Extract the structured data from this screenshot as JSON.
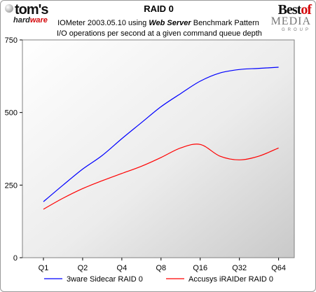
{
  "logos": {
    "left": {
      "main": "tom's",
      "sub_dark": "hard",
      "sub_red": "ware"
    },
    "right": {
      "best": "Best",
      "of": "of",
      "media": "MEDIA",
      "group": "GROUP"
    }
  },
  "header": {
    "title": "RAID 0",
    "subtitle_pre": "IOMeter 2003.05.10 using ",
    "subtitle_bold": "Web Server",
    "subtitle_post": " Benchmark Pattern",
    "subtitle2": "I/O operations per second at a given command queue depth"
  },
  "chart_data": {
    "type": "line",
    "title": "RAID 0",
    "categories": [
      "Q1",
      "Q2",
      "Q4",
      "Q8",
      "Q16",
      "Q32",
      "Q64"
    ],
    "x": [
      0,
      0.5,
      1,
      1.5,
      2,
      2.5,
      3,
      3.5,
      4,
      4.5,
      5,
      5.5,
      6
    ],
    "ylim": [
      0,
      750
    ],
    "yticks": [
      0,
      250,
      500,
      750
    ],
    "grid": false,
    "legend_position": "bottom",
    "series": [
      {
        "name": "3ware Sidecar RAID 0",
        "color": "#0000ff",
        "values": [
          193,
          250,
          305,
          352,
          410,
          465,
          520,
          565,
          608,
          636,
          648,
          652,
          656
        ]
      },
      {
        "name": "Accusys iRAIDer RAID 0",
        "color": "#ff0000",
        "values": [
          167,
          205,
          238,
          265,
          290,
          315,
          345,
          378,
          390,
          350,
          337,
          350,
          378
        ]
      }
    ]
  }
}
